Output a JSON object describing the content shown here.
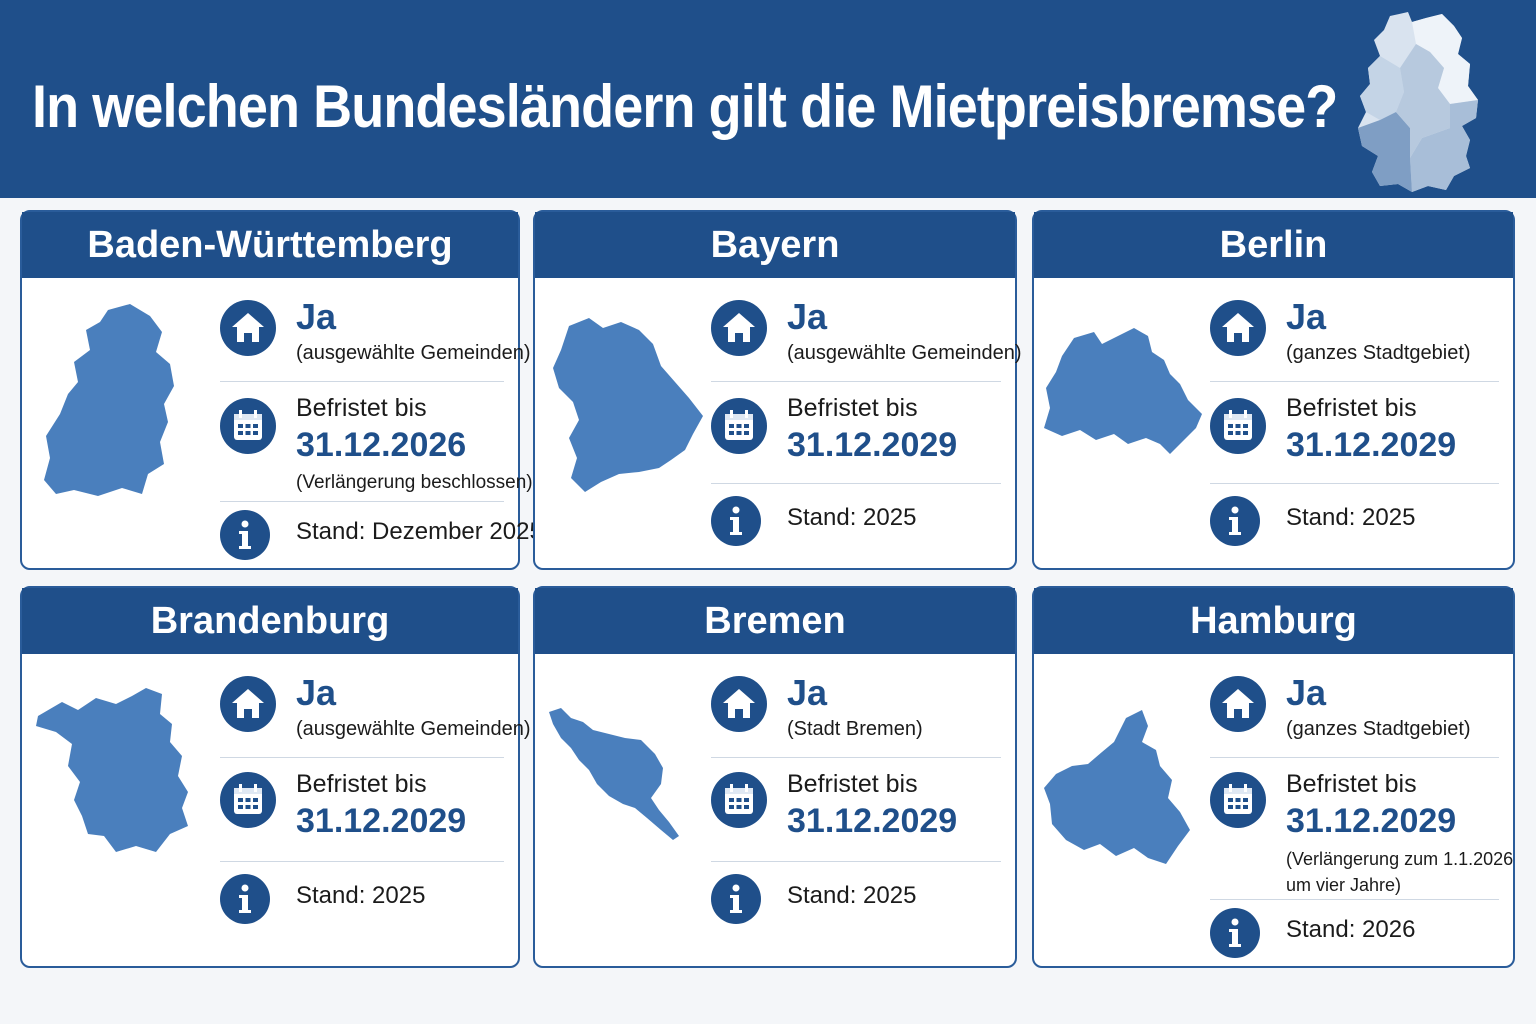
{
  "title": "In welchen Bundesländern gilt die Mietpreisbremse?",
  "colors": {
    "primary": "#1f4f8a",
    "shape": "#4a7fbd",
    "background": "#f4f6f9"
  },
  "icons": {
    "scope": "house-icon",
    "deadline": "calendar-icon",
    "info": "info-icon"
  },
  "states": [
    {
      "name": "Baden-Württemberg",
      "status": "Ja",
      "scope": "(ausgewählte Gemeinden)",
      "deadline_label": "Befristet bis",
      "deadline": "31.12.2026",
      "note": "(Verlängerung beschlossen)",
      "stand": "Stand: Dezember 2025"
    },
    {
      "name": "Bayern",
      "status": "Ja",
      "scope": "(ausgewählte Gemeinden)",
      "deadline_label": "Befristet bis",
      "deadline": "31.12.2029",
      "note": "",
      "stand": "Stand: 2025"
    },
    {
      "name": "Berlin",
      "status": "Ja",
      "scope": "(ganzes Stadtgebiet)",
      "deadline_label": "Befristet bis",
      "deadline": "31.12.2029",
      "note": "",
      "stand": "Stand: 2025"
    },
    {
      "name": "Brandenburg",
      "status": "Ja",
      "scope": "(ausgewählte Gemeinden)",
      "deadline_label": "Befristet bis",
      "deadline": "31.12.2029",
      "note": "",
      "stand": "Stand: 2025"
    },
    {
      "name": "Bremen",
      "status": "Ja",
      "scope": "(Stadt Bremen)",
      "deadline_label": "Befristet bis",
      "deadline": "31.12.2029",
      "note": "",
      "stand": "Stand: 2025"
    },
    {
      "name": "Hamburg",
      "status": "Ja",
      "scope": "(ganzes Stadtgebiet)",
      "deadline_label": "Befristet bis",
      "deadline": "31.12.2029",
      "note_line1": "(Verlängerung zum 1.1.2026",
      "note_line2": "um vier Jahre)",
      "stand": "Stand: 2026"
    }
  ]
}
